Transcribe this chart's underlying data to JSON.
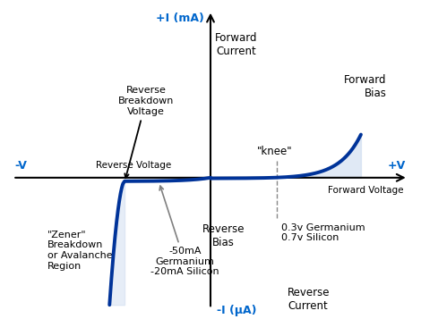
{
  "bg_color": "#ffffff",
  "curve_color": "#003399",
  "fill_color": "#c8d8ee",
  "axis_color": "#000000",
  "label_color_blue": "#0066cc",
  "label_color_black": "#000000",
  "x_range": [
    -4.8,
    4.8
  ],
  "y_range": [
    -3.8,
    4.8
  ],
  "annotations": {
    "plus_I": "+I (mA)",
    "minus_I": "-I (μA)",
    "plus_V": "+V",
    "minus_V": "-V",
    "forward_current": "Forward\nCurrent",
    "reverse_current": "Reverse\nCurrent",
    "forward_voltage": "Forward Voltage",
    "reverse_voltage": "Reverse Voltage",
    "forward_bias": "Forward\nBias",
    "reverse_bias": "Reverse\nBias",
    "knee": "\"knee\"",
    "zener": "\"Zener\"\nBreakdown\nor Avalanche\nRegion",
    "reverse_breakdown": "Reverse\nBreakdown\nVoltage",
    "reverse_current_values": "-50mA\nGermanium\n-20mA Silicon",
    "knee_voltages": "0.3v Germanium\n0.7v Silicon"
  }
}
